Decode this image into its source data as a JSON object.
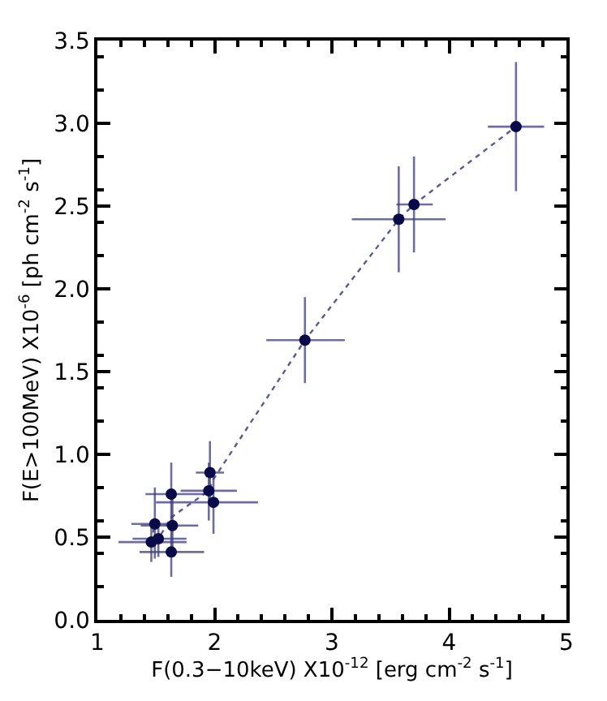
{
  "chart_data": {
    "type": "scatter",
    "xlabel": "F(0.3−10keV) X10$^{-12}$ [erg cm$^{-2}$ s$^{-1}$]",
    "ylabel": "F(E>100MeV) X10$^{-6}$ [ph cm$^{-2}$ s$^{-1}$]",
    "xlim": [
      1,
      5
    ],
    "xticks": [
      1,
      2,
      3,
      4,
      5
    ],
    "ylim": [
      0,
      3.5
    ],
    "yticks": [
      {
        "value": 0,
        "label": "0.0"
      },
      0.5,
      {
        "value": 1,
        "label": "1.0"
      },
      1.5,
      {
        "value": 2,
        "label": "2.0"
      },
      2.5,
      {
        "value": 3,
        "label": "3.0"
      },
      3.5
    ],
    "marker": "circle",
    "series": [
      {
        "type": "line",
        "color": "#5a5a96",
        "marker": "none",
        "line_style": "dotted",
        "x": [
          1.46,
          1.49,
          1.52,
          1.63,
          1.95,
          1.99,
          2.77,
          3.57,
          3.7,
          4.57
        ],
        "values": [
          0.47,
          0.58,
          0.49,
          0.62,
          0.78,
          0.85,
          1.69,
          2.42,
          2.51,
          2.98
        ]
      },
      {
        "color": "#0a0a4a",
        "x": [
          1.46,
          1.49,
          1.52,
          1.63,
          1.63,
          1.64,
          1.95,
          1.96,
          1.99,
          2.77,
          3.57,
          3.7,
          4.57
        ],
        "values": [
          0.47,
          0.58,
          0.49,
          0.76,
          0.41,
          0.57,
          0.78,
          0.89,
          0.71,
          1.69,
          2.42,
          2.51,
          2.98
        ],
        "xerrors": [
          [
            1.18,
            1.76
          ],
          [
            1.29,
            1.63
          ],
          [
            1.3,
            1.76
          ],
          [
            1.41,
            1.91
          ],
          [
            1.36,
            1.91
          ],
          [
            1.37,
            1.86
          ],
          [
            1.71,
            2.19
          ],
          [
            1.84,
            2.08
          ],
          [
            1.5,
            2.37
          ],
          [
            2.44,
            3.11
          ],
          [
            3.17,
            3.97
          ],
          [
            3.55,
            3.86
          ],
          [
            4.33,
            4.81
          ]
        ],
        "errors": [
          [
            0.35,
            0.6
          ],
          [
            0.37,
            0.8
          ],
          [
            0.38,
            0.6
          ],
          [
            0.57,
            0.95
          ],
          [
            0.26,
            0.55
          ],
          [
            0.4,
            0.75
          ],
          [
            0.6,
            0.95
          ],
          [
            0.7,
            1.08
          ],
          [
            0.52,
            0.9
          ],
          [
            1.43,
            1.95
          ],
          [
            2.1,
            2.74
          ],
          [
            2.22,
            2.8
          ],
          [
            2.59,
            3.37
          ]
        ]
      }
    ]
  }
}
